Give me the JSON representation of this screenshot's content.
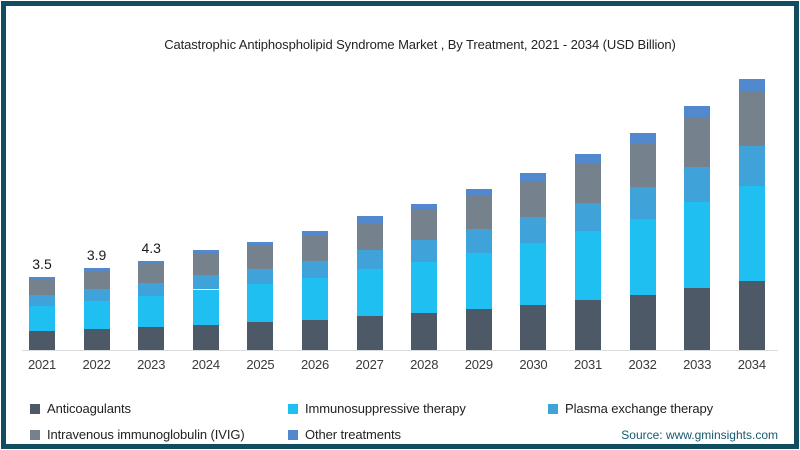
{
  "frame": {
    "border_color": "#114d60",
    "background": "#ffffff"
  },
  "source": "Source: www.gminsights.com",
  "chart_data": {
    "type": "bar",
    "stacked": true,
    "title": "Catastrophic Antiphospholipid Syndrome Market , By Treatment, 2021 - 2034 (USD Billion)",
    "xlabel": "",
    "ylabel": "",
    "ylim": [
      0,
      14
    ],
    "grid": false,
    "legend_position": "bottom",
    "categories": [
      "2021",
      "2022",
      "2023",
      "2024",
      "2025",
      "2026",
      "2027",
      "2028",
      "2029",
      "2030",
      "2031",
      "2032",
      "2033",
      "2034"
    ],
    "totals": [
      3.5,
      3.9,
      4.3,
      4.8,
      5.2,
      5.7,
      6.4,
      7.0,
      7.7,
      8.5,
      9.4,
      10.4,
      11.7,
      13.0
    ],
    "value_labels": {
      "2021": "3.5",
      "2022": "3.9",
      "2023": "4.3"
    },
    "series": [
      {
        "name": "Anticoagulants",
        "color": "#4d5967",
        "values": [
          0.89,
          0.99,
          1.1,
          1.22,
          1.33,
          1.45,
          1.63,
          1.79,
          1.96,
          2.17,
          2.4,
          2.65,
          2.98,
          3.32
        ]
      },
      {
        "name": "Immunosuppressive therapy",
        "color": "#1fc0f1",
        "values": [
          1.23,
          1.37,
          1.5,
          1.68,
          1.82,
          2.0,
          2.24,
          2.45,
          2.7,
          2.97,
          3.29,
          3.64,
          4.1,
          4.55
        ]
      },
      {
        "name": "Plasma exchange therapy",
        "color": "#3fa2d9",
        "values": [
          0.51,
          0.57,
          0.62,
          0.7,
          0.75,
          0.83,
          0.93,
          1.01,
          1.12,
          1.23,
          1.36,
          1.51,
          1.7,
          1.89
        ]
      },
      {
        "name": "Intravenous immunoglobulin (IVIG)",
        "color": "#76818e",
        "values": [
          0.72,
          0.8,
          0.88,
          0.98,
          1.07,
          1.17,
          1.31,
          1.44,
          1.58,
          1.74,
          1.93,
          2.13,
          2.4,
          2.66
        ]
      },
      {
        "name": "Other treatments",
        "color": "#5289ce",
        "values": [
          0.16,
          0.18,
          0.19,
          0.22,
          0.23,
          0.26,
          0.29,
          0.32,
          0.35,
          0.38,
          0.42,
          0.47,
          0.53,
          0.59
        ]
      }
    ]
  }
}
